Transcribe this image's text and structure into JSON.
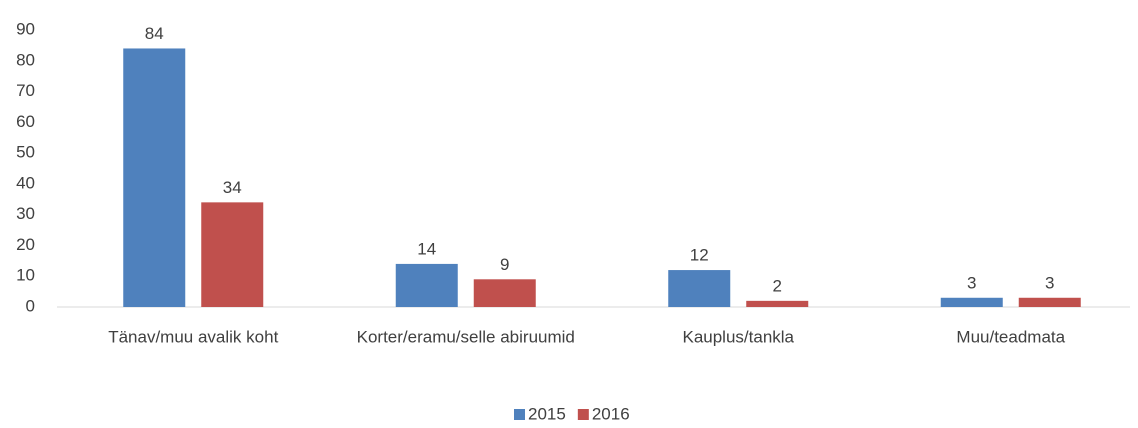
{
  "chart_data": {
    "type": "bar",
    "categories": [
      "Tänav/muu avalik koht",
      "Korter/eramu/selle abiruumid",
      "Kauplus/tankla",
      "Muu/teadmata"
    ],
    "series": [
      {
        "name": "2015",
        "color": "#4f81bd",
        "values": [
          84,
          14,
          12,
          3
        ]
      },
      {
        "name": "2016",
        "color": "#c0504d",
        "values": [
          34,
          9,
          2,
          3
        ]
      }
    ],
    "ylim": [
      0,
      90
    ],
    "yticks": [
      0,
      10,
      20,
      30,
      40,
      50,
      60,
      70,
      80,
      90
    ],
    "grid": false,
    "legend": "bottom"
  }
}
